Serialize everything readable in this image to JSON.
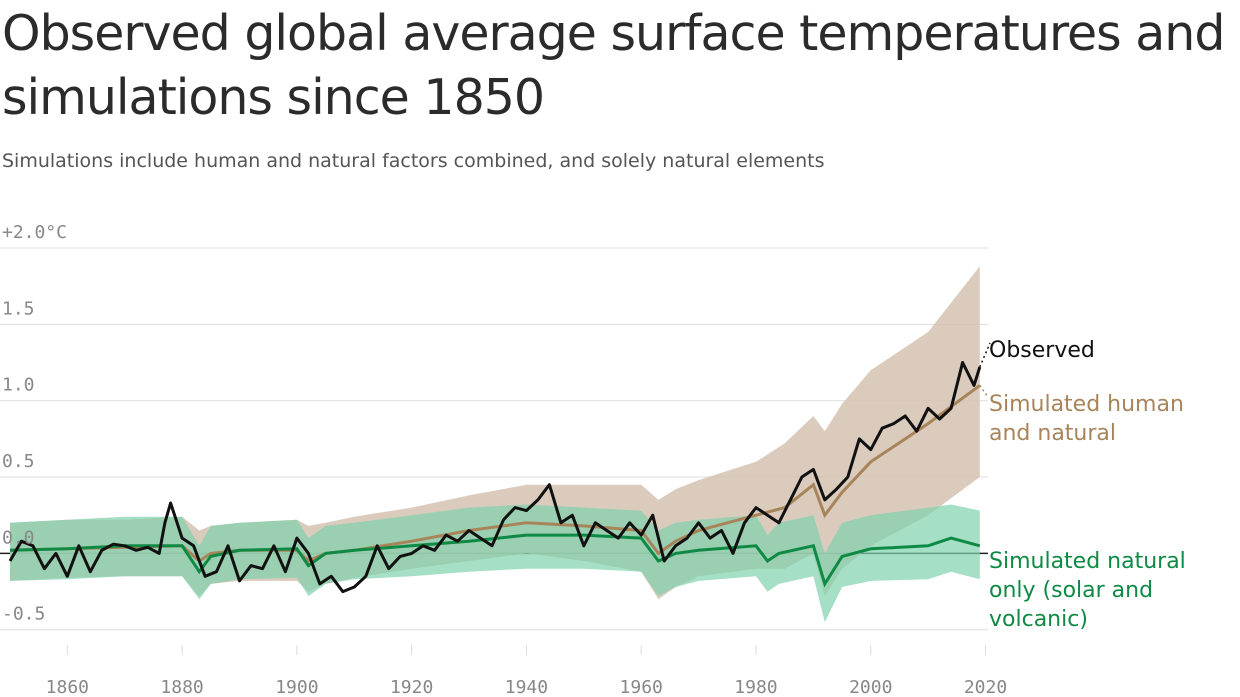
{
  "title": "Observed global average surface temperatures and simulations since 1850",
  "subtitle": "Simulations include human and natural factors combined, and solely natural elements",
  "colors": {
    "observed": "#111111",
    "human_natural_line": "#a8845a",
    "human_natural_band": "#d3c2b2",
    "natural_line": "#0f8a45",
    "natural_band": "#7fd1ad",
    "grid": "#dddddd",
    "zero": "#222222"
  },
  "chart_data": {
    "type": "line",
    "xlim": [
      1846,
      2022
    ],
    "ylim": [
      -0.6,
      2.0
    ],
    "y_ticks": [
      {
        "value": 2.0,
        "label": "+2.0°C"
      },
      {
        "value": 1.5,
        "label": "1.5"
      },
      {
        "value": 1.0,
        "label": "1.0"
      },
      {
        "value": 0.5,
        "label": "0.5"
      },
      {
        "value": 0.0,
        "label": "0.0"
      },
      {
        "value": -0.5,
        "label": "-0.5"
      }
    ],
    "x_ticks": [
      "1860",
      "1880",
      "1900",
      "1920",
      "1940",
      "1960",
      "1980",
      "2000",
      "2020"
    ],
    "grid": true,
    "series": [
      {
        "name": "Observed",
        "x": [
          1850,
          1852,
          1854,
          1856,
          1858,
          1860,
          1862,
          1864,
          1866,
          1868,
          1870,
          1872,
          1874,
          1876,
          1877,
          1878,
          1880,
          1882,
          1884,
          1886,
          1888,
          1890,
          1892,
          1894,
          1896,
          1898,
          1900,
          1902,
          1904,
          1906,
          1908,
          1910,
          1912,
          1914,
          1916,
          1918,
          1920,
          1922,
          1924,
          1926,
          1928,
          1930,
          1932,
          1934,
          1936,
          1938,
          1940,
          1942,
          1944,
          1946,
          1948,
          1950,
          1952,
          1954,
          1956,
          1958,
          1960,
          1962,
          1964,
          1966,
          1968,
          1970,
          1972,
          1974,
          1976,
          1978,
          1980,
          1982,
          1984,
          1986,
          1988,
          1990,
          1992,
          1994,
          1996,
          1998,
          2000,
          2002,
          2004,
          2006,
          2008,
          2010,
          2012,
          2014,
          2016,
          2018,
          2019
        ],
        "values": [
          -0.05,
          0.08,
          0.05,
          -0.1,
          0.0,
          -0.15,
          0.05,
          -0.12,
          0.02,
          0.06,
          0.05,
          0.02,
          0.04,
          0.0,
          0.2,
          0.33,
          0.1,
          0.05,
          -0.15,
          -0.12,
          0.05,
          -0.18,
          -0.08,
          -0.1,
          0.05,
          -0.12,
          0.1,
          0.0,
          -0.2,
          -0.15,
          -0.25,
          -0.22,
          -0.15,
          0.05,
          -0.1,
          -0.02,
          0.0,
          0.05,
          0.02,
          0.12,
          0.08,
          0.15,
          0.1,
          0.05,
          0.22,
          0.3,
          0.28,
          0.35,
          0.45,
          0.2,
          0.25,
          0.05,
          0.2,
          0.15,
          0.1,
          0.2,
          0.12,
          0.25,
          -0.05,
          0.05,
          0.1,
          0.2,
          0.1,
          0.15,
          0.0,
          0.2,
          0.3,
          0.25,
          0.2,
          0.35,
          0.5,
          0.55,
          0.35,
          0.42,
          0.5,
          0.75,
          0.68,
          0.82,
          0.85,
          0.9,
          0.8,
          0.95,
          0.88,
          0.95,
          1.25,
          1.1,
          1.22
        ]
      },
      {
        "name": "Simulated human and natural",
        "x": [
          1850,
          1860,
          1870,
          1880,
          1883,
          1885,
          1890,
          1900,
          1902,
          1905,
          1910,
          1920,
          1930,
          1940,
          1950,
          1960,
          1963,
          1966,
          1970,
          1980,
          1985,
          1990,
          1992,
          1995,
          2000,
          2010,
          2019
        ],
        "values": [
          0.02,
          0.03,
          0.04,
          0.05,
          -0.05,
          0.0,
          0.02,
          0.02,
          -0.05,
          0.0,
          0.02,
          0.08,
          0.15,
          0.2,
          0.18,
          0.15,
          0.0,
          0.08,
          0.15,
          0.25,
          0.3,
          0.45,
          0.25,
          0.4,
          0.6,
          0.85,
          1.1
        ],
        "upper": [
          0.2,
          0.22,
          0.22,
          0.24,
          0.15,
          0.18,
          0.2,
          0.22,
          0.18,
          0.2,
          0.24,
          0.3,
          0.38,
          0.45,
          0.45,
          0.45,
          0.35,
          0.42,
          0.48,
          0.6,
          0.72,
          0.9,
          0.8,
          0.98,
          1.2,
          1.45,
          1.88
        ],
        "lower": [
          -0.18,
          -0.16,
          -0.15,
          -0.15,
          -0.28,
          -0.2,
          -0.18,
          -0.18,
          -0.25,
          -0.2,
          -0.16,
          -0.1,
          -0.05,
          0.0,
          -0.05,
          -0.12,
          -0.3,
          -0.22,
          -0.15,
          -0.1,
          -0.1,
          0.0,
          -0.28,
          -0.1,
          0.05,
          0.25,
          0.5
        ]
      },
      {
        "name": "Simulated natural only (solar and volcanic)",
        "x": [
          1850,
          1860,
          1870,
          1880,
          1883,
          1885,
          1890,
          1900,
          1902,
          1905,
          1910,
          1920,
          1930,
          1940,
          1950,
          1960,
          1963,
          1966,
          1970,
          1980,
          1982,
          1984,
          1990,
          1992,
          1995,
          2000,
          2010,
          2014,
          2019
        ],
        "values": [
          0.02,
          0.03,
          0.05,
          0.05,
          -0.12,
          -0.02,
          0.02,
          0.03,
          -0.08,
          0.0,
          0.02,
          0.05,
          0.08,
          0.12,
          0.12,
          0.1,
          -0.05,
          0.0,
          0.02,
          0.05,
          -0.05,
          0.0,
          0.05,
          -0.2,
          -0.02,
          0.03,
          0.05,
          0.1,
          0.05
        ],
        "upper": [
          0.2,
          0.22,
          0.24,
          0.24,
          0.05,
          0.18,
          0.2,
          0.22,
          0.1,
          0.18,
          0.2,
          0.25,
          0.3,
          0.32,
          0.3,
          0.28,
          0.15,
          0.2,
          0.22,
          0.25,
          0.12,
          0.2,
          0.25,
          0.0,
          0.2,
          0.25,
          0.3,
          0.32,
          0.28
        ],
        "lower": [
          -0.18,
          -0.17,
          -0.15,
          -0.15,
          -0.3,
          -0.2,
          -0.17,
          -0.16,
          -0.28,
          -0.2,
          -0.17,
          -0.15,
          -0.12,
          -0.1,
          -0.1,
          -0.12,
          -0.28,
          -0.22,
          -0.18,
          -0.15,
          -0.25,
          -0.2,
          -0.15,
          -0.45,
          -0.22,
          -0.18,
          -0.17,
          -0.12,
          -0.17
        ]
      }
    ],
    "labels": {
      "observed": "Observed",
      "human_natural": [
        "Simulated human",
        "and natural"
      ],
      "natural": [
        "Simulated natural",
        "only (solar and",
        "volcanic)"
      ]
    }
  }
}
